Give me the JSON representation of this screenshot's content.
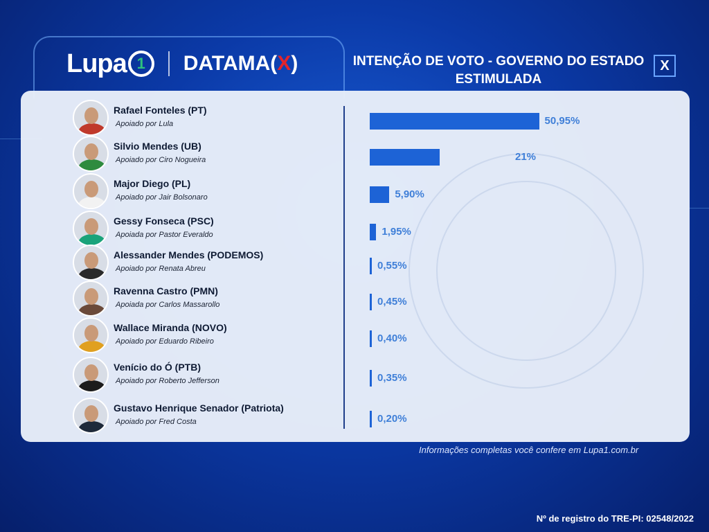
{
  "brand": {
    "lupa": "Lupa",
    "lupa_number": "1",
    "datama_prefix": "DATAMA(",
    "datama_x": "X",
    "datama_suffix": ")"
  },
  "header": {
    "title_line1": "INTENÇÃO DE VOTO - GOVERNO DO ESTADO",
    "title_line2": "ESTIMULADA",
    "close_label": "X"
  },
  "colors": {
    "bar": "#1d63d6",
    "percent_text": "#3f7fd8",
    "accent_red": "#e3242b",
    "accent_green": "#2ec27e"
  },
  "chart_data": {
    "type": "bar",
    "orientation": "horizontal",
    "title": "INTENÇÃO DE VOTO - GOVERNO DO ESTADO ESTIMULADA",
    "categories": [
      "Rafael Fonteles (PT)",
      "Silvio Mendes (UB)",
      "Major Diego (PL)",
      "Gessy Fonseca (PSC)",
      "Alessander Mendes (PODEMOS)",
      "Ravenna Castro (PMN)",
      "Wallace Miranda (NOVO)",
      "Venício do Ó (PTB)",
      "Gustavo Henrique Senador (Patriota)"
    ],
    "values": [
      50.95,
      21,
      5.9,
      1.95,
      0.55,
      0.45,
      0.4,
      0.35,
      0.2
    ],
    "xlim": [
      0,
      100
    ],
    "grid": false,
    "legend": "none"
  },
  "candidates": [
    {
      "name": "Rafael Fonteles (PT)",
      "support": "Apoiado por Lula",
      "percent_label": "50,95%",
      "value": 50.95,
      "avatar_color": "#c0392b"
    },
    {
      "name": "Silvio Mendes (UB)",
      "support": "Apoiado por Ciro Nogueira",
      "percent_label": "21%",
      "value": 21,
      "avatar_color": "#2e8b3e"
    },
    {
      "name": "Major Diego (PL)",
      "support": "Apoiado por Jair Bolsonaro",
      "percent_label": "5,90%",
      "value": 5.9,
      "avatar_color": "#f2f2f2"
    },
    {
      "name": "Gessy Fonseca (PSC)",
      "support": "Apoiada por Pastor Everaldo",
      "percent_label": "1,95%",
      "value": 1.95,
      "avatar_color": "#1aa37a"
    },
    {
      "name": "Alessander Mendes (PODEMOS)",
      "support": "Apoiado por Renata Abreu",
      "percent_label": "0,55%",
      "value": 0.55,
      "avatar_color": "#2a2a2a"
    },
    {
      "name": "Ravenna Castro (PMN)",
      "support": "Apoiada por Carlos Massarollo",
      "percent_label": "0,45%",
      "value": 0.45,
      "avatar_color": "#6b4a3a"
    },
    {
      "name": "Wallace Miranda (NOVO)",
      "support": "Apoiado por Eduardo Ribeiro",
      "percent_label": "0,40%",
      "value": 0.4,
      "avatar_color": "#e0a020"
    },
    {
      "name": "Venício do Ó (PTB)",
      "support": "Apoiado por Roberto Jefferson",
      "percent_label": "0,35%",
      "value": 0.35,
      "avatar_color": "#1c1c1c"
    },
    {
      "name": "Gustavo Henrique Senador (Patriota)",
      "support": "Apoiado por Fred Costa",
      "percent_label": "0,20%",
      "value": 0.2,
      "avatar_color": "#1f2a3a"
    }
  ],
  "footer": {
    "note": "Informações completas você confere em Lupa1.com.br",
    "registry": "Nº de registro do TRE-PI: 02548/2022"
  }
}
